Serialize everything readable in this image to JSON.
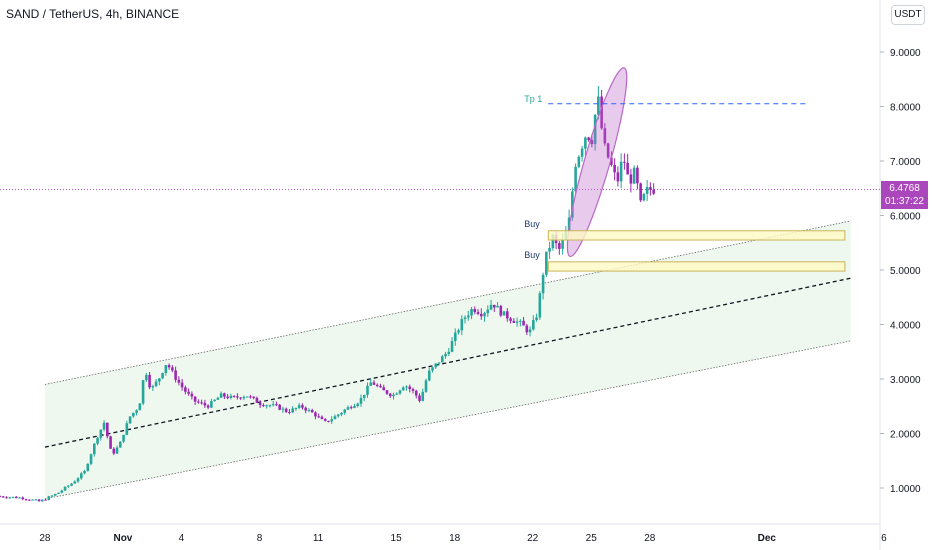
{
  "header": {
    "title": "SAND / TetherUS, 4h, BINANCE",
    "currency": "USDT"
  },
  "last_price": {
    "value": "6.4768",
    "countdown": "01:37:22",
    "color": "#ab47bc"
  },
  "colors": {
    "up": "#26a69a",
    "down": "#9c27b0",
    "channel_fill": "#e8f5e9",
    "zone_fill": "#fff9c4",
    "zone_border": "#c9b458",
    "tp_line": "#2962ff",
    "ellipse": "#ba68c8"
  },
  "chart_data": {
    "type": "candlestick",
    "y_axis": {
      "min": 0.3,
      "max": 9.5,
      "ticks": [
        1,
        2,
        3,
        4,
        5,
        6,
        7,
        8,
        9
      ],
      "tick_labels": [
        "1.0000",
        "2.0000",
        "3.0000",
        "4.0000",
        "5.0000",
        "6.0000",
        "7.0000",
        "8.0000",
        "9.0000"
      ]
    },
    "x_axis": {
      "ticks": [
        {
          "day": 28,
          "label": "28"
        },
        {
          "day": 32,
          "label": "Nov"
        },
        {
          "day": 35,
          "label": "4"
        },
        {
          "day": 39,
          "label": "8"
        },
        {
          "day": 42,
          "label": "11"
        },
        {
          "day": 46,
          "label": "15"
        },
        {
          "day": 49,
          "label": "18"
        },
        {
          "day": 53,
          "label": "22"
        },
        {
          "day": 56,
          "label": "25"
        },
        {
          "day": 59,
          "label": "28"
        },
        {
          "day": 65,
          "label": "Dec"
        },
        {
          "day": 71,
          "label": "6"
        }
      ],
      "range": [
        25.7,
        70.8
      ]
    },
    "price_path": [
      [
        25.7,
        0.85
      ],
      [
        27.0,
        0.82
      ],
      [
        27.9,
        0.75
      ],
      [
        28.8,
        0.9
      ],
      [
        29.6,
        1.1
      ],
      [
        30.2,
        1.3
      ],
      [
        30.8,
        1.9
      ],
      [
        31.2,
        2.2
      ],
      [
        31.6,
        1.6
      ],
      [
        32.0,
        1.8
      ],
      [
        32.5,
        2.3
      ],
      [
        33.0,
        2.5
      ],
      [
        33.3,
        3.2
      ],
      [
        33.6,
        2.8
      ],
      [
        34.0,
        3.0
      ],
      [
        34.4,
        3.3
      ],
      [
        34.9,
        3.0
      ],
      [
        35.3,
        2.8
      ],
      [
        35.8,
        2.6
      ],
      [
        36.5,
        2.5
      ],
      [
        37.2,
        2.7
      ],
      [
        37.8,
        2.65
      ],
      [
        38.5,
        2.7
      ],
      [
        39.2,
        2.55
      ],
      [
        40.0,
        2.5
      ],
      [
        40.6,
        2.4
      ],
      [
        41.3,
        2.5
      ],
      [
        42.0,
        2.35
      ],
      [
        42.5,
        2.2
      ],
      [
        43.0,
        2.3
      ],
      [
        43.6,
        2.45
      ],
      [
        44.3,
        2.6
      ],
      [
        44.9,
        2.95
      ],
      [
        45.4,
        2.8
      ],
      [
        46.0,
        2.7
      ],
      [
        46.6,
        2.9
      ],
      [
        47.1,
        2.75
      ],
      [
        47.4,
        2.6
      ],
      [
        47.8,
        3.1
      ],
      [
        48.3,
        3.3
      ],
      [
        48.8,
        3.5
      ],
      [
        49.2,
        3.8
      ],
      [
        49.6,
        4.1
      ],
      [
        50.1,
        4.3
      ],
      [
        50.6,
        4.2
      ],
      [
        51.1,
        4.4
      ],
      [
        51.6,
        4.2
      ],
      [
        52.1,
        4.1
      ],
      [
        52.6,
        4.0
      ],
      [
        53.0,
        3.85
      ],
      [
        53.4,
        4.2
      ],
      [
        53.8,
        5.2
      ],
      [
        54.2,
        5.6
      ],
      [
        54.5,
        5.35
      ],
      [
        54.8,
        5.6
      ],
      [
        55.1,
        6.0
      ],
      [
        55.3,
        6.9
      ],
      [
        55.6,
        7.2
      ],
      [
        55.9,
        7.5
      ],
      [
        56.2,
        7.4
      ],
      [
        56.5,
        8.2
      ],
      [
        56.8,
        7.3
      ],
      [
        57.1,
        7.0
      ],
      [
        57.5,
        6.6
      ],
      [
        57.8,
        7.1
      ],
      [
        58.1,
        6.6
      ],
      [
        58.4,
        6.8
      ],
      [
        58.7,
        6.2
      ],
      [
        59.0,
        6.45
      ],
      [
        59.2,
        6.48
      ]
    ],
    "channel": {
      "top": [
        [
          28,
          2.9
        ],
        [
          69.3,
          5.9
        ]
      ],
      "bottom": [
        [
          28,
          0.8
        ],
        [
          69.3,
          3.7
        ]
      ],
      "mid": [
        [
          28,
          1.75
        ],
        [
          69.3,
          4.85
        ]
      ],
      "fill_range": [
        28,
        69.3
      ]
    },
    "buy_zones": [
      {
        "label": "Buy",
        "x0": 53.8,
        "x1": 69.0,
        "y0": 5.55,
        "y1": 5.72
      },
      {
        "label": "Buy",
        "x0": 53.8,
        "x1": 69.0,
        "y0": 4.98,
        "y1": 5.15
      }
    ],
    "target": {
      "label": "Tp 1",
      "price": 8.05,
      "x0": 53.8,
      "x1": 67.0
    },
    "highlight_ellipse": {
      "cx": 56.3,
      "cy": 6.98,
      "rx": 0.65,
      "ry": 1.8,
      "rotate": 16
    },
    "current_price": 6.4768
  }
}
